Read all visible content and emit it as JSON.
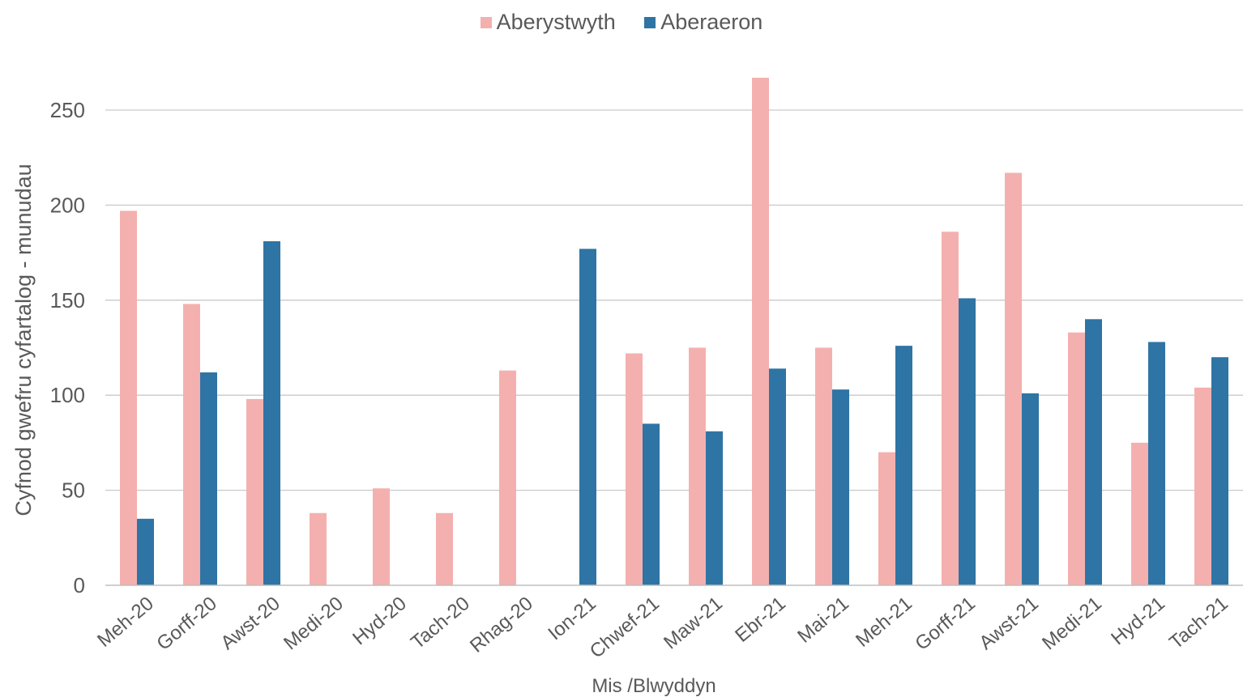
{
  "chart_data": {
    "type": "bar",
    "categories": [
      "Meh-20",
      "Gorff-20",
      "Awst-20",
      "Medi-20",
      "Hyd-20",
      "Tach-20",
      "Rhag-20",
      "Ion-21",
      "Chwef-21",
      "Maw-21",
      "Ebr-21",
      "Mai-21",
      "Meh-21",
      "Gorff-21",
      "Awst-21",
      "Medi-21",
      "Hyd-21",
      "Tach-21"
    ],
    "series": [
      {
        "name": "Aberystwyth",
        "color": "#f4b0ae",
        "values": [
          197,
          148,
          98,
          38,
          51,
          38,
          113,
          null,
          122,
          125,
          267,
          125,
          70,
          186,
          217,
          133,
          75,
          104
        ]
      },
      {
        "name": "Aberaeron",
        "color": "#2e74a4",
        "values": [
          35,
          112,
          181,
          null,
          null,
          null,
          null,
          177,
          85,
          81,
          114,
          103,
          126,
          151,
          101,
          140,
          128,
          120
        ]
      }
    ],
    "xlabel": "Mis /Blwyddyn",
    "ylabel": "Cyfnod gwefru cyfartalog - munudau",
    "yticks": [
      0,
      50,
      100,
      150,
      200,
      250
    ],
    "ylim": [
      0,
      270
    ],
    "grid": true,
    "legend_position": "top-center"
  }
}
